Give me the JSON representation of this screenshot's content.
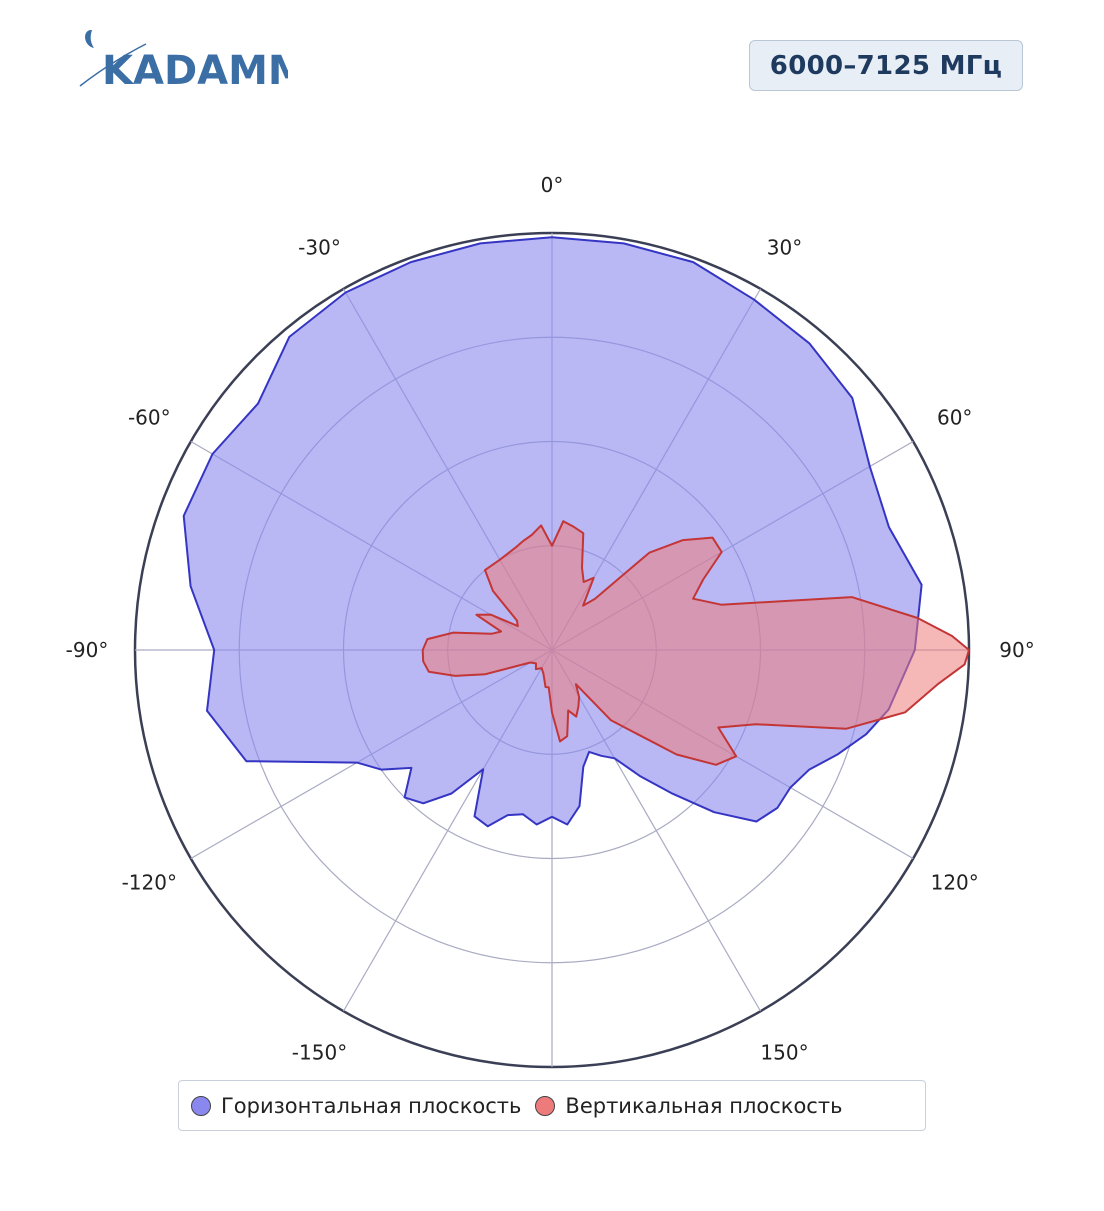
{
  "logo": {
    "text": "KADAMM",
    "color": "#3a6ea5"
  },
  "header": {
    "frequency_label": "6000–7125 МГц"
  },
  "chart_data": {
    "type": "polar-area",
    "angle_unit": "degrees",
    "angular_direction": "clockwise",
    "zero_at": "top",
    "angular_ticks": [
      "0°",
      "30°",
      "60°",
      "90°",
      "120°",
      "150°",
      "-150°",
      "-120°",
      "-90°",
      "-60°",
      "-30°"
    ],
    "radial_axis": {
      "range": [
        0,
        1
      ],
      "rings": 4,
      "tick_labels_visible": false
    },
    "legend_position": "bottom-center",
    "series": [
      {
        "name": "Горизонтальная плоскость",
        "color": "#8a88ee",
        "line_color": "#3535c4",
        "points": [
          [
            0,
            0.99
          ],
          [
            10,
            0.99
          ],
          [
            20,
            0.99
          ],
          [
            30,
            0.97
          ],
          [
            40,
            0.96
          ],
          [
            50,
            0.94
          ],
          [
            60,
            0.88
          ],
          [
            70,
            0.86
          ],
          [
            80,
            0.9
          ],
          [
            90,
            0.87
          ],
          [
            100,
            0.82
          ],
          [
            105,
            0.78
          ],
          [
            110,
            0.73
          ],
          [
            115,
            0.68
          ],
          [
            120,
            0.66
          ],
          [
            125,
            0.66
          ],
          [
            130,
            0.64
          ],
          [
            135,
            0.55
          ],
          [
            140,
            0.45
          ],
          [
            145,
            0.37
          ],
          [
            150,
            0.3
          ],
          [
            155,
            0.28
          ],
          [
            160,
            0.26
          ],
          [
            165,
            0.29
          ],
          [
            170,
            0.38
          ],
          [
            175,
            0.42
          ],
          [
            180,
            0.4
          ],
          [
            185,
            0.42
          ],
          [
            190,
            0.4
          ],
          [
            195,
            0.41
          ],
          [
            200,
            0.45
          ],
          [
            205,
            0.44
          ],
          [
            210,
            0.33
          ],
          [
            215,
            0.42
          ],
          [
            220,
            0.48
          ],
          [
            225,
            0.5
          ],
          [
            230,
            0.44
          ],
          [
            235,
            0.5
          ],
          [
            240,
            0.54
          ],
          [
            250,
            0.78
          ],
          [
            260,
            0.84
          ],
          [
            270,
            0.81
          ],
          [
            280,
            0.88
          ],
          [
            290,
            0.94
          ],
          [
            300,
            0.94
          ],
          [
            310,
            0.92
          ],
          [
            320,
            0.98
          ],
          [
            330,
            0.99
          ],
          [
            340,
            0.99
          ],
          [
            350,
            0.99
          ],
          [
            360,
            0.99
          ]
        ]
      },
      {
        "name": "Вертикальная плоскость",
        "color": "#ee7b7b",
        "line_color": "#c43535",
        "points": [
          [
            0,
            0.25
          ],
          [
            5,
            0.31
          ],
          [
            10,
            0.3
          ],
          [
            15,
            0.29
          ],
          [
            20,
            0.21
          ],
          [
            25,
            0.18
          ],
          [
            30,
            0.2
          ],
          [
            35,
            0.13
          ],
          [
            40,
            0.16
          ],
          [
            45,
            0.33
          ],
          [
            50,
            0.41
          ],
          [
            55,
            0.47
          ],
          [
            60,
            0.47
          ],
          [
            65,
            0.4
          ],
          [
            70,
            0.36
          ],
          [
            75,
            0.42
          ],
          [
            80,
            0.73
          ],
          [
            85,
            0.88
          ],
          [
            88,
            0.96
          ],
          [
            90,
            1.0
          ],
          [
            92,
            0.99
          ],
          [
            95,
            0.93
          ],
          [
            100,
            0.86
          ],
          [
            105,
            0.73
          ],
          [
            110,
            0.52
          ],
          [
            115,
            0.44
          ],
          [
            120,
            0.51
          ],
          [
            125,
            0.48
          ],
          [
            130,
            0.39
          ],
          [
            140,
            0.22
          ],
          [
            145,
            0.1
          ],
          [
            150,
            0.13
          ],
          [
            155,
            0.15
          ],
          [
            160,
            0.17
          ],
          [
            165,
            0.15
          ],
          [
            170,
            0.21
          ],
          [
            175,
            0.22
          ],
          [
            180,
            0.15
          ],
          [
            185,
            0.09
          ],
          [
            190,
            0.09
          ],
          [
            200,
            0.06
          ],
          [
            210,
            0.05
          ],
          [
            220,
            0.06
          ],
          [
            230,
            0.05
          ],
          [
            240,
            0.06
          ],
          [
            250,
            0.17
          ],
          [
            255,
            0.24
          ],
          [
            260,
            0.3
          ],
          [
            265,
            0.31
          ],
          [
            270,
            0.31
          ],
          [
            275,
            0.3
          ],
          [
            280,
            0.24
          ],
          [
            285,
            0.15
          ],
          [
            290,
            0.13
          ],
          [
            295,
            0.2
          ],
          [
            300,
            0.17
          ],
          [
            305,
            0.1
          ],
          [
            310,
            0.11
          ],
          [
            315,
            0.2
          ],
          [
            320,
            0.25
          ],
          [
            330,
            0.25
          ],
          [
            340,
            0.26
          ],
          [
            345,
            0.27
          ],
          [
            350,
            0.28
          ],
          [
            355,
            0.3
          ],
          [
            360,
            0.25
          ]
        ]
      }
    ]
  },
  "legend": {
    "items": [
      {
        "label": "Горизонтальная плоскость",
        "color": "#8a88ee"
      },
      {
        "label": "Вертикальная плоскость",
        "color": "#ee7b7b"
      }
    ]
  }
}
